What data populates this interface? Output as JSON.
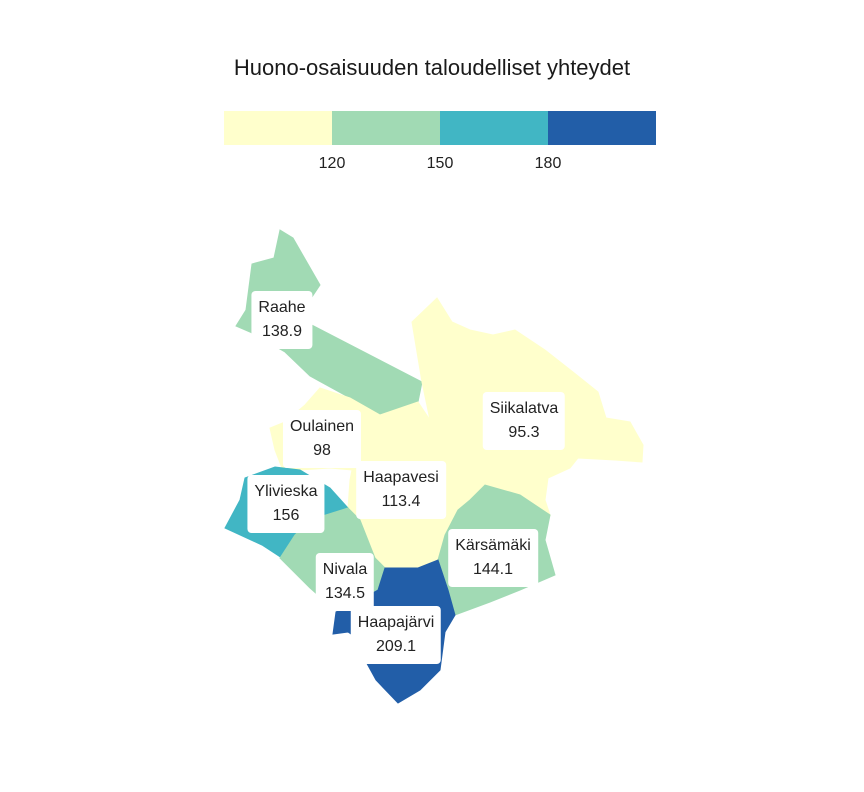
{
  "title": "Huono-osaisuuden taloudelliset yhteydet",
  "legend": {
    "bins": [
      {
        "color": "#ffffcc"
      },
      {
        "color": "#a1dab4"
      },
      {
        "color": "#41b6c4"
      },
      {
        "color": "#225ea8"
      }
    ],
    "ticks": [
      "120",
      "150",
      "180"
    ]
  },
  "regions": [
    {
      "id": "raahe",
      "name": "Raahe",
      "value": "138.9",
      "color": "#a1dab4"
    },
    {
      "id": "oulainen",
      "name": "Oulainen",
      "value": "98",
      "color": "#ffffcc"
    },
    {
      "id": "siikalatva",
      "name": "Siikalatva",
      "value": "95.3",
      "color": "#ffffcc"
    },
    {
      "id": "haapavesi",
      "name": "Haapavesi",
      "value": "113.4",
      "color": "#ffffcc"
    },
    {
      "id": "ylivieska",
      "name": "Ylivieska",
      "value": "156",
      "color": "#41b6c4"
    },
    {
      "id": "karsamaki",
      "name": "Kärsämäki",
      "value": "144.1",
      "color": "#a1dab4"
    },
    {
      "id": "nivala",
      "name": "Nivala",
      "value": "134.5",
      "color": "#a1dab4"
    },
    {
      "id": "haapajarvi",
      "name": "Haapajärvi",
      "value": "209.1",
      "color": "#225ea8"
    }
  ]
}
